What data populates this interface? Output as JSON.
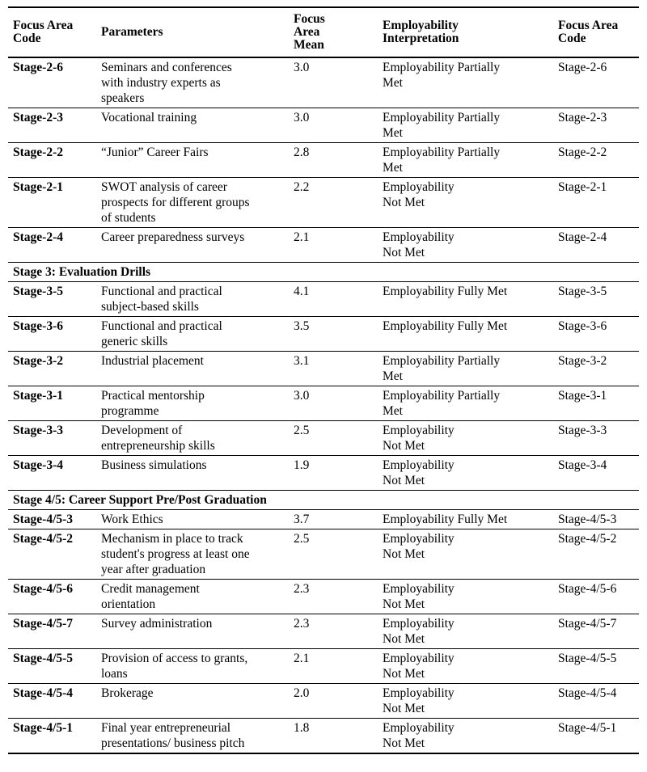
{
  "page": {
    "background": "#ffffff",
    "text_color": "#000000",
    "rule_color": "#000000"
  },
  "table": {
    "columns": [
      {
        "label": "Focus Area\nCode"
      },
      {
        "label": "Parameters"
      },
      {
        "label": "Focus\nArea\nMean"
      },
      {
        "label": "Employability\nInterpretation"
      },
      {
        "label": "Focus Area\nCode"
      }
    ],
    "rows": [
      {
        "type": "data",
        "code": "Stage-2-6",
        "parameters": "Seminars and conferences\nwith industry experts as\nspeakers",
        "mean": "3.0",
        "interpretation": "Employability Partially\nMet",
        "code_right": "Stage-2-6"
      },
      {
        "type": "data",
        "code": "Stage-2-3",
        "parameters": "Vocational training",
        "mean": "3.0",
        "interpretation": "Employability Partially\nMet",
        "code_right": "Stage-2-3"
      },
      {
        "type": "data",
        "code": "Stage-2-2",
        "parameters": "“Junior” Career Fairs",
        "mean": "2.8",
        "interpretation": "Employability Partially\nMet",
        "code_right": "Stage-2-2"
      },
      {
        "type": "data",
        "code": "Stage-2-1",
        "parameters": "SWOT analysis of career\nprospects for different groups\nof students",
        "mean": "2.2",
        "interpretation": "Employability\nNot Met",
        "code_right": "Stage-2-1"
      },
      {
        "type": "data",
        "code": "Stage-2-4",
        "parameters": "Career preparedness surveys",
        "mean": "2.1",
        "interpretation": "Employability\nNot Met",
        "code_right": "Stage-2-4"
      },
      {
        "type": "section",
        "label": "Stage 3: Evaluation Drills"
      },
      {
        "type": "data",
        "code": "Stage-3-5",
        "parameters": "Functional and practical\nsubject-based skills",
        "mean": "4.1",
        "interpretation": "Employability Fully Met",
        "code_right": "Stage-3-5"
      },
      {
        "type": "data",
        "code": "Stage-3-6",
        "parameters": "Functional and practical\ngeneric skills",
        "mean": "3.5",
        "interpretation": "Employability Fully Met",
        "code_right": "Stage-3-6"
      },
      {
        "type": "data",
        "code": "Stage-3-2",
        "parameters": "Industrial placement",
        "mean": "3.1",
        "interpretation": "Employability Partially\nMet",
        "code_right": "Stage-3-2"
      },
      {
        "type": "data",
        "code": "Stage-3-1",
        "parameters": "Practical mentorship\nprogramme",
        "mean": "3.0",
        "interpretation": "Employability Partially\nMet",
        "code_right": "Stage-3-1"
      },
      {
        "type": "data",
        "code": "Stage-3-3",
        "parameters": "Development of\nentrepreneurship skills",
        "mean": "2.5",
        "interpretation": "Employability\nNot Met",
        "code_right": "Stage-3-3"
      },
      {
        "type": "data",
        "code": "Stage-3-4",
        "parameters": "Business simulations",
        "mean": "1.9",
        "interpretation": "Employability\nNot Met",
        "code_right": "Stage-3-4"
      },
      {
        "type": "section",
        "label": "Stage 4/5: Career Support Pre/Post Graduation"
      },
      {
        "type": "data",
        "code": "Stage-4/5-3",
        "parameters": "Work Ethics",
        "mean": "3.7",
        "interpretation": "Employability Fully Met",
        "code_right": "Stage-4/5-3"
      },
      {
        "type": "data",
        "code": "Stage-4/5-2",
        "parameters": "Mechanism in place to track\nstudent's progress at least one\nyear after graduation",
        "mean": "2.5",
        "interpretation": "Employability\nNot Met",
        "code_right": "Stage-4/5-2"
      },
      {
        "type": "data",
        "code": "Stage-4/5-6",
        "parameters": "Credit management\norientation",
        "mean": "2.3",
        "interpretation": "Employability\nNot Met",
        "code_right": "Stage-4/5-6"
      },
      {
        "type": "data",
        "code": "Stage-4/5-7",
        "parameters": "Survey administration",
        "mean": "2.3",
        "interpretation": "Employability\nNot Met",
        "code_right": "Stage-4/5-7"
      },
      {
        "type": "data",
        "code": "Stage-4/5-5",
        "parameters": "Provision of access to grants,\nloans",
        "mean": "2.1",
        "interpretation": "Employability\nNot Met",
        "code_right": "Stage-4/5-5"
      },
      {
        "type": "data",
        "code": "Stage-4/5-4",
        "parameters": "Brokerage",
        "mean": "2.0",
        "interpretation": "Employability\nNot Met",
        "code_right": "Stage-4/5-4"
      },
      {
        "type": "data",
        "code": "Stage-4/5-1",
        "parameters": "Final year entrepreneurial\npresentations/ business pitch",
        "mean": "1.8",
        "interpretation": "Employability\nNot Met",
        "code_right": "Stage-4/5-1"
      }
    ]
  }
}
